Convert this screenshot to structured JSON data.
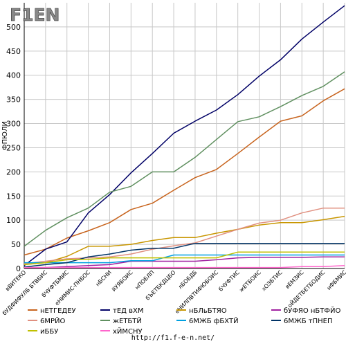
{
  "logo": "F1EN",
  "footer_url": "http://f1.f-e-n.net/",
  "chart_data": {
    "type": "line",
    "ylabel": "ФПЮЛИ",
    "xlabel": "",
    "ylim": [
      0,
      550
    ],
    "yticks": [
      0,
      50,
      100,
      150,
      200,
      250,
      300,
      350,
      400,
      450,
      500
    ],
    "grid": true,
    "legend_position": "bottom",
    "categories": [
      "вВИТЕКО",
      "бУДФИФУЛБ БТВБИС",
      "бЧУФТБМИС",
      "еНИМИС-ПНБОС",
      "нБСНИ",
      "йУЯБОИС",
      "нПОБЛП",
      "бЪЕТБКДЦБО",
      "лБОБДБ",
      "еНИЛПВТИФЮБОИС",
      "бЧУФТИС",
      "жЕТБОИС",
      "хОЗБТИС",
      "вЕМЗИС",
      "оЙДЕТБЕТБОДИС",
      "иФБМИС"
    ],
    "series": [
      {
        "name": "нЕТГЕДЕУ",
        "color": "#c8641e",
        "values": [
          28,
          40,
          63,
          78,
          95,
          122,
          135,
          162,
          188,
          205,
          238,
          272,
          305,
          316,
          347,
          372
        ]
      },
      {
        "name": "тЕД вХМ",
        "color": "#000066",
        "values": [
          6,
          40,
          55,
          115,
          153,
          198,
          238,
          280,
          305,
          328,
          360,
          398,
          432,
          475,
          510,
          544
        ]
      },
      {
        "name": "нБЛьБТЯО",
        "color": "#c89600",
        "values": [
          8,
          12,
          25,
          46,
          46,
          50,
          58,
          64,
          64,
          73,
          81,
          90,
          95,
          95,
          101,
          108
        ]
      },
      {
        "name": "бУФЯО нБТФЙО",
        "color": "#a020a0",
        "values": [
          2,
          2,
          4,
          6,
          8,
          15,
          15,
          15,
          15,
          18,
          22,
          23,
          23,
          23,
          24,
          24
        ]
      },
      {
        "name": "6МРЙО",
        "color": "#e09080",
        "values": [
          10,
          15,
          20,
          22,
          24,
          30,
          40,
          47,
          53,
          67,
          81,
          94,
          100,
          115,
          125,
          125
        ]
      },
      {
        "name": "жЕТБТЙ",
        "color": "#609060",
        "values": [
          46,
          79,
          105,
          125,
          158,
          170,
          200,
          200,
          230,
          267,
          304,
          314,
          335,
          358,
          377,
          407
        ]
      },
      {
        "name": "6МЖБ фБХТЙ",
        "color": "#00a0e0",
        "values": [
          12,
          12,
          12,
          12,
          12,
          16,
          16,
          28,
          28,
          28,
          28,
          28,
          28,
          28,
          28,
          28
        ]
      },
      {
        "name": "6МЖБ тПНЕП",
        "color": "#003366",
        "values": [
          3,
          8,
          12,
          24,
          30,
          38,
          42,
          42,
          52,
          52,
          52,
          52,
          52,
          52,
          52,
          52
        ]
      },
      {
        "name": "иББУ",
        "color": "#c0c000",
        "values": [
          8,
          12,
          18,
          19,
          22,
          22,
          22,
          22,
          22,
          22,
          34,
          34,
          34,
          34,
          34,
          34
        ]
      },
      {
        "name": "хЙМСНУ",
        "color": "#ff66cc",
        "values": [
          2,
          2,
          2,
          2,
          2,
          2,
          2,
          2,
          2,
          2,
          2,
          2,
          2,
          4,
          4,
          6
        ]
      }
    ]
  }
}
